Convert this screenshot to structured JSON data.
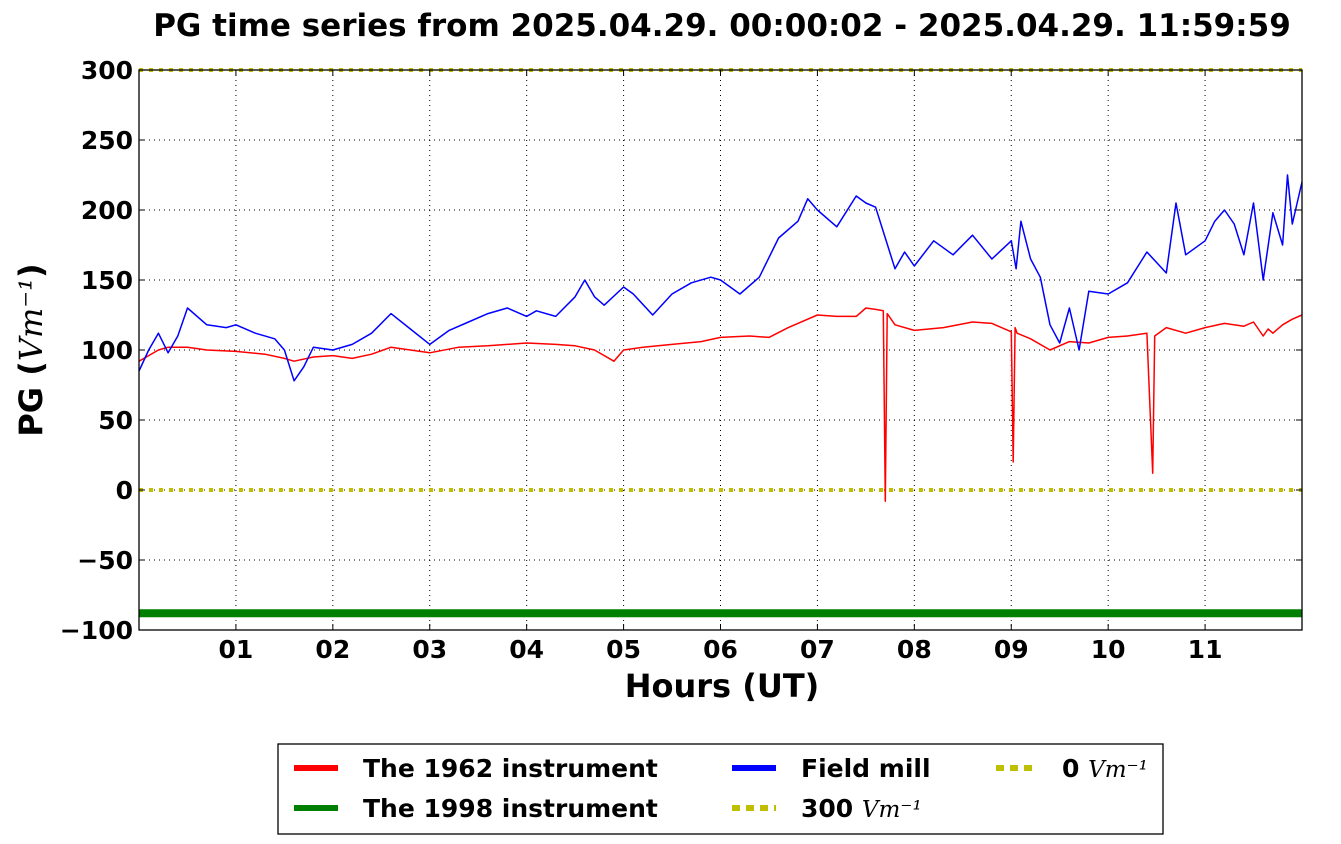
{
  "chart_data": {
    "type": "line",
    "title": "PG time series from 2025.04.29. 00:00:02 - 2025.04.29. 11:59:59",
    "xlabel": "Hours (UT)",
    "ylabel": "PG (Vm⁻¹)",
    "ylabel_prefix": "PG (",
    "ylabel_unit": "Vm⁻¹",
    "ylabel_suffix": ")",
    "xlim": [
      0,
      12
    ],
    "ylim": [
      -100,
      300
    ],
    "grid": true,
    "legend_position": "bottom",
    "x_ticks": [
      1,
      2,
      3,
      4,
      5,
      6,
      7,
      8,
      9,
      10,
      11
    ],
    "x_tick_labels": [
      "01",
      "02",
      "03",
      "04",
      "05",
      "06",
      "07",
      "08",
      "09",
      "10",
      "11"
    ],
    "y_ticks": [
      -100,
      -50,
      0,
      50,
      100,
      150,
      200,
      250,
      300
    ],
    "y_tick_labels": [
      "−100",
      "−50",
      "0",
      "50",
      "100",
      "150",
      "200",
      "250",
      "300"
    ],
    "series": [
      {
        "name": "The 1962 instrument",
        "color": "#ff0000",
        "x": [
          0,
          0.1,
          0.2,
          0.3,
          0.5,
          0.7,
          1.0,
          1.3,
          1.5,
          1.6,
          1.8,
          2.0,
          2.2,
          2.4,
          2.6,
          2.8,
          3.0,
          3.3,
          3.6,
          4.0,
          4.3,
          4.5,
          4.7,
          4.9,
          5.0,
          5.2,
          5.5,
          5.8,
          6.0,
          6.3,
          6.5,
          6.7,
          7.0,
          7.2,
          7.4,
          7.5,
          7.6,
          7.68,
          7.7,
          7.72,
          7.8,
          8.0,
          8.3,
          8.6,
          8.8,
          9.0,
          9.02,
          9.04,
          9.06,
          9.2,
          9.4,
          9.6,
          9.8,
          10.0,
          10.2,
          10.4,
          10.46,
          10.48,
          10.6,
          10.8,
          11.0,
          11.2,
          11.4,
          11.5,
          11.6,
          11.65,
          11.7,
          11.8,
          11.9,
          12.0
        ],
        "y": [
          92,
          96,
          100,
          102,
          102,
          100,
          99,
          97,
          94,
          92,
          95,
          96,
          94,
          97,
          102,
          100,
          98,
          102,
          103,
          105,
          104,
          103,
          100,
          92,
          100,
          102,
          104,
          106,
          109,
          110,
          109,
          116,
          125,
          124,
          124,
          130,
          129,
          128,
          -8,
          126,
          118,
          114,
          116,
          120,
          119,
          113,
          20,
          116,
          112,
          108,
          100,
          106,
          105,
          109,
          110,
          112,
          12,
          110,
          116,
          112,
          116,
          119,
          117,
          120,
          110,
          115,
          112,
          118,
          122,
          125
        ]
      },
      {
        "name": "The 1998 instrument",
        "color": "#008000",
        "x": [
          0,
          12
        ],
        "y": [
          -88,
          -88
        ]
      },
      {
        "name": "Field mill",
        "color": "#0000ff",
        "x": [
          0,
          0.1,
          0.2,
          0.3,
          0.4,
          0.5,
          0.7,
          0.9,
          1.0,
          1.2,
          1.4,
          1.5,
          1.6,
          1.7,
          1.8,
          2.0,
          2.2,
          2.4,
          2.6,
          2.8,
          3.0,
          3.2,
          3.4,
          3.6,
          3.8,
          4.0,
          4.1,
          4.3,
          4.5,
          4.6,
          4.7,
          4.8,
          5.0,
          5.1,
          5.3,
          5.5,
          5.7,
          5.9,
          6.0,
          6.2,
          6.4,
          6.6,
          6.8,
          6.9,
          7.0,
          7.2,
          7.4,
          7.5,
          7.6,
          7.7,
          7.8,
          7.9,
          8.0,
          8.2,
          8.4,
          8.6,
          8.8,
          9.0,
          9.05,
          9.1,
          9.2,
          9.3,
          9.4,
          9.5,
          9.6,
          9.7,
          9.8,
          10.0,
          10.2,
          10.4,
          10.6,
          10.7,
          10.8,
          11.0,
          11.1,
          11.2,
          11.3,
          11.4,
          11.5,
          11.6,
          11.7,
          11.8,
          11.85,
          11.9,
          12.0
        ],
        "y": [
          85,
          100,
          112,
          98,
          110,
          130,
          118,
          116,
          118,
          112,
          108,
          100,
          78,
          88,
          102,
          100,
          104,
          112,
          126,
          115,
          104,
          114,
          120,
          126,
          130,
          124,
          128,
          124,
          138,
          150,
          138,
          132,
          145,
          140,
          125,
          140,
          148,
          152,
          150,
          140,
          152,
          180,
          192,
          208,
          200,
          188,
          210,
          205,
          202,
          180,
          158,
          170,
          160,
          178,
          168,
          182,
          165,
          178,
          158,
          192,
          165,
          152,
          118,
          105,
          130,
          100,
          142,
          140,
          148,
          170,
          155,
          205,
          168,
          178,
          192,
          200,
          190,
          168,
          205,
          150,
          198,
          175,
          225,
          190,
          220
        ]
      },
      {
        "name": "300 Vm⁻¹",
        "legend_label": "300",
        "legend_unit": "Vm⁻¹",
        "color": "#bfbf00",
        "style": "dotted",
        "x": [
          0,
          12
        ],
        "y": [
          300,
          300
        ]
      },
      {
        "name": "0 Vm⁻¹",
        "legend_label": "0",
        "legend_unit": "Vm⁻¹",
        "color": "#bfbf00",
        "style": "dotted",
        "x": [
          0,
          12
        ],
        "y": [
          0,
          0
        ]
      }
    ]
  }
}
